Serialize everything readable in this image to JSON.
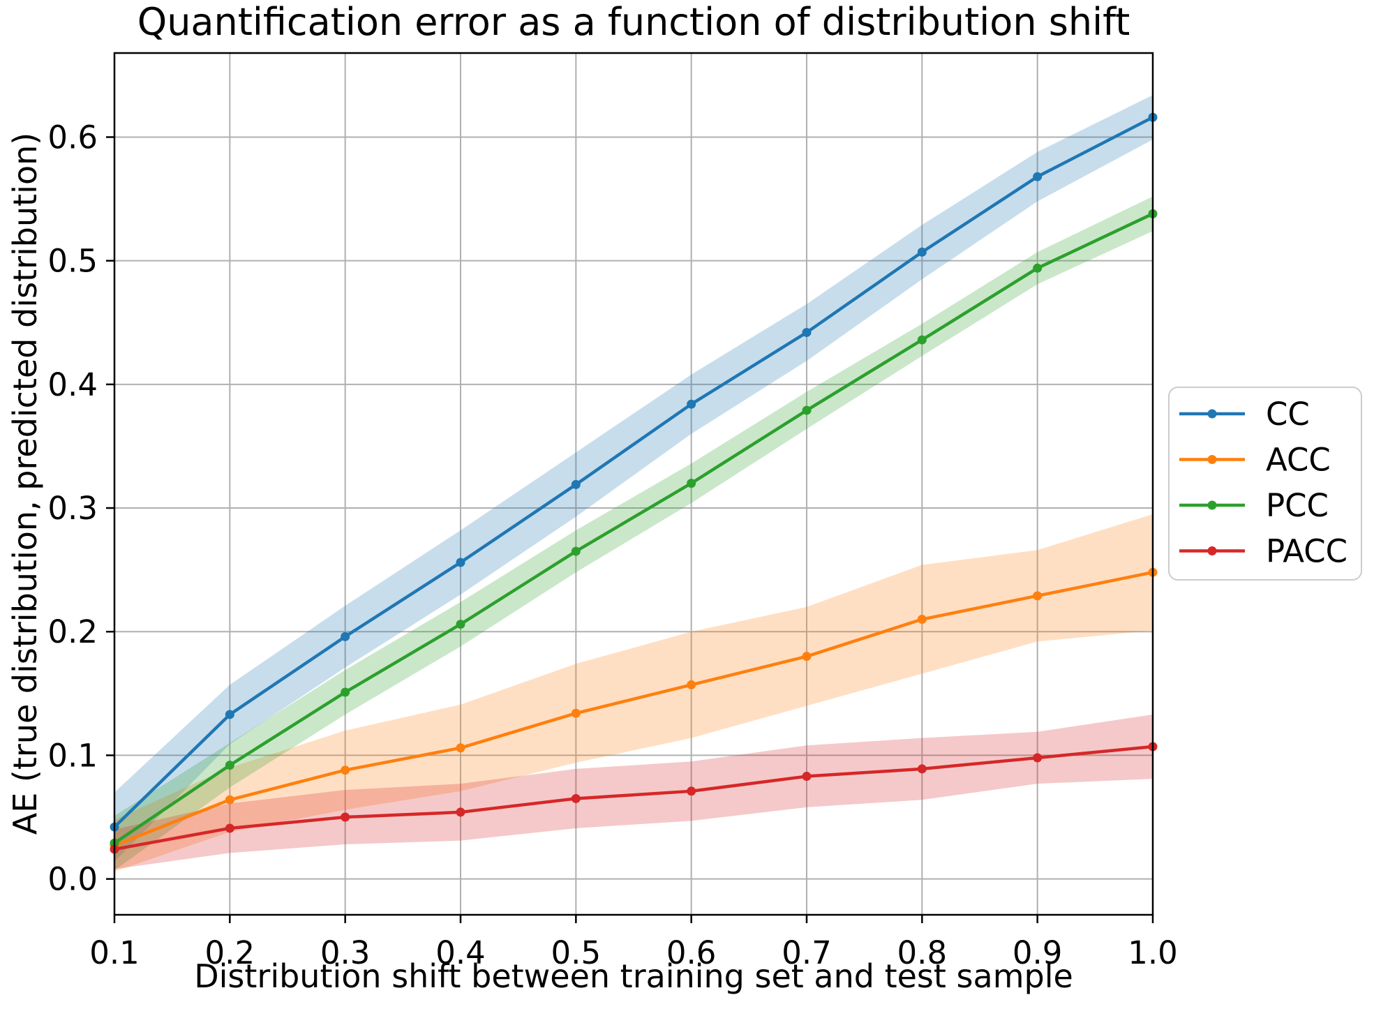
{
  "chart_data": {
    "type": "line",
    "title": "Quantification error as a function of distribution shift",
    "xlabel": "Distribution shift between training set and test sample",
    "ylabel": "AE (true distribution, predicted distribution)",
    "x": [
      0.1,
      0.2,
      0.3,
      0.4,
      0.5,
      0.6,
      0.7,
      0.8,
      0.9,
      1.0
    ],
    "x_tick_labels": [
      "0.1",
      "0.2",
      "0.3",
      "0.4",
      "0.5",
      "0.6",
      "0.7",
      "0.8",
      "0.9",
      "1.0"
    ],
    "y_tick_values": [
      0.0,
      0.1,
      0.2,
      0.3,
      0.4,
      0.5,
      0.6
    ],
    "y_tick_labels": [
      "0.0",
      "0.1",
      "0.2",
      "0.3",
      "0.4",
      "0.5",
      "0.6"
    ],
    "xlim": [
      0.1,
      1.0
    ],
    "ylim": [
      -0.029,
      0.668
    ],
    "grid": true,
    "legend_position": "center right outside",
    "band_alpha": 0.25,
    "series": [
      {
        "name": "CC",
        "color": "#1f77b4",
        "values": [
          0.042,
          0.133,
          0.196,
          0.256,
          0.319,
          0.384,
          0.442,
          0.507,
          0.568,
          0.616
        ],
        "band_halfwidth": [
          0.028,
          0.024,
          0.025,
          0.026,
          0.026,
          0.024,
          0.023,
          0.022,
          0.02,
          0.018
        ]
      },
      {
        "name": "ACC",
        "color": "#ff7f0e",
        "values": [
          0.027,
          0.064,
          0.088,
          0.106,
          0.134,
          0.157,
          0.18,
          0.21,
          0.229,
          0.248
        ],
        "band_halfwidth": [
          0.021,
          0.026,
          0.032,
          0.035,
          0.04,
          0.043,
          0.04,
          0.044,
          0.037,
          0.047
        ]
      },
      {
        "name": "PCC",
        "color": "#2ca02c",
        "values": [
          0.029,
          0.092,
          0.151,
          0.206,
          0.265,
          0.32,
          0.379,
          0.436,
          0.494,
          0.538
        ],
        "band_halfwidth": [
          0.022,
          0.018,
          0.018,
          0.018,
          0.017,
          0.016,
          0.015,
          0.013,
          0.013,
          0.014
        ]
      },
      {
        "name": "PACC",
        "color": "#d62728",
        "values": [
          0.024,
          0.041,
          0.05,
          0.054,
          0.065,
          0.071,
          0.083,
          0.089,
          0.098,
          0.107
        ],
        "band_halfwidth": [
          0.016,
          0.02,
          0.022,
          0.023,
          0.024,
          0.024,
          0.025,
          0.025,
          0.021,
          0.026
        ]
      }
    ],
    "style_colors": {
      "gridline": "#b0b0b0",
      "spine": "#000000",
      "tick": "#000000",
      "legend_border": "#cccccc",
      "background": "#ffffff"
    }
  }
}
